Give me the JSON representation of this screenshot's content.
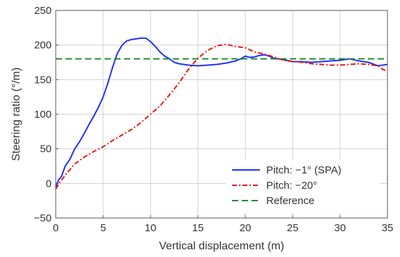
{
  "chart_data": {
    "type": "line",
    "title": "",
    "xlabel": "Vertical displacement (m)",
    "ylabel": "Steering ratio (°/m)",
    "xlim": [
      0,
      35
    ],
    "ylim": [
      -50,
      250
    ],
    "xticks": [
      0,
      5,
      10,
      15,
      20,
      25,
      30,
      35
    ],
    "yticks": [
      -50,
      0,
      50,
      100,
      150,
      200,
      250
    ],
    "xtick_labels": [
      "0",
      "5",
      "10",
      "15",
      "20",
      "25",
      "30",
      "35"
    ],
    "ytick_labels": [
      "−50",
      "0",
      "50",
      "100",
      "150",
      "200",
      "250"
    ],
    "grid": true,
    "legend_position": "lower-right",
    "series": [
      {
        "name": "Pitch: −1° (SPA)",
        "color": "#1f2fff",
        "dash": "solid",
        "x": [
          0,
          0.3,
          0.6,
          1.0,
          1.5,
          2.0,
          2.5,
          3.0,
          3.5,
          4.0,
          4.5,
          5.0,
          5.5,
          6.0,
          6.5,
          7.0,
          7.5,
          8.0,
          8.5,
          9.0,
          9.5,
          10.0,
          10.5,
          11.0,
          11.5,
          12.0,
          12.5,
          13.0,
          14.0,
          15.0,
          16.0,
          17.0,
          18.0,
          19.0,
          19.5,
          20.0,
          20.5,
          21.0,
          21.5,
          22.0,
          22.5,
          23.0,
          24.0,
          25.0,
          26.0,
          27.0,
          28.0,
          29.0,
          30.0,
          31.0,
          32.0,
          33.0,
          34.0,
          35.0
        ],
        "y": [
          -5,
          5,
          10,
          25,
          35,
          50,
          60,
          72,
          85,
          97,
          110,
          125,
          145,
          168,
          188,
          200,
          206,
          208,
          209,
          210,
          210,
          205,
          198,
          190,
          184,
          180,
          175,
          173,
          171,
          170,
          171,
          172,
          174,
          177,
          180,
          184,
          182,
          183,
          185,
          186,
          184,
          181,
          179,
          176,
          176,
          175,
          176,
          177,
          178,
          180,
          177,
          175,
          170,
          172
        ]
      },
      {
        "name": "Pitch: −20°",
        "color": "#ee1111",
        "dash": "dashdot",
        "x": [
          0,
          0.5,
          1.0,
          1.5,
          2.0,
          3.0,
          4.0,
          5.0,
          6.0,
          7.0,
          8.0,
          9.0,
          10.0,
          11.0,
          12.0,
          13.0,
          14.0,
          15.0,
          16.0,
          17.0,
          18.0,
          19.0,
          20.0,
          21.0,
          22.0,
          23.0,
          24.0,
          25.0,
          26.0,
          27.0,
          28.0,
          29.0,
          30.0,
          31.0,
          32.0,
          33.0,
          34.0,
          34.5,
          35.0
        ],
        "y": [
          -8,
          3,
          12,
          20,
          28,
          38,
          46,
          53,
          62,
          70,
          78,
          88,
          100,
          112,
          128,
          145,
          165,
          181,
          192,
          199,
          201,
          198,
          196,
          190,
          187,
          183,
          178,
          176,
          175,
          173,
          172,
          171,
          171,
          172,
          173,
          172,
          170,
          165,
          162
        ]
      },
      {
        "name": "Reference",
        "color": "#1e8b2a",
        "dash": "dashed",
        "x": [
          0,
          35
        ],
        "y": [
          180,
          180
        ]
      }
    ]
  }
}
